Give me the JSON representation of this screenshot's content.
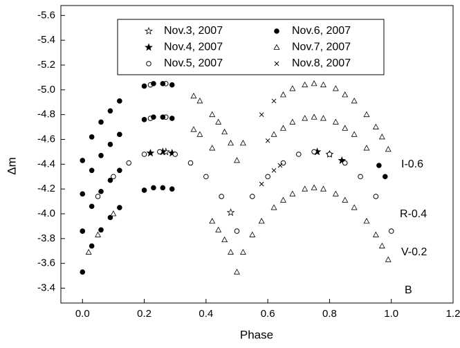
{
  "chart_data": {
    "type": "scatter",
    "xlabel": "Phase",
    "ylabel": "Δm",
    "xlim": [
      -0.07,
      1.2
    ],
    "ylim": [
      -5.68,
      -3.28
    ],
    "y_inverted": true,
    "xticks": [
      {
        "value": 0,
        "label": "0.0"
      },
      0.2,
      0.4,
      0.6,
      0.8,
      {
        "value": 1,
        "label": "1.0"
      },
      1.2
    ],
    "yticks": [
      -5.6,
      -5.4,
      -5.2,
      {
        "value": -5,
        "label": "-5.0"
      },
      -4.8,
      -4.6,
      -4.4,
      -4.2,
      {
        "value": -4,
        "label": "-4.0"
      },
      -3.8,
      -3.6,
      -3.4
    ],
    "legend": "top",
    "annotations": [
      "I-0.6",
      "R-0.4",
      "V-0.2",
      "B"
    ],
    "series": [
      {
        "name": "Nov.3, 2007",
        "marker": "star-open",
        "color": "#000000",
        "x": [
          0.27,
          0.48
        ],
        "y": [
          -4.5,
          -4.01
        ]
      },
      {
        "name": "Nov.4, 2007",
        "marker": "star",
        "color": "#000000",
        "x": [
          0.22,
          0.26,
          0.29,
          0.76,
          0.8,
          0.84
        ],
        "y": [
          -4.49,
          -4.5,
          -4.49,
          -4.5,
          -4.48,
          -4.43
        ]
      },
      {
        "name": "Nov.5, 2007",
        "marker": "circle-open",
        "color": "#000000",
        "x": [
          0.0,
          0.05,
          0.1,
          0.15,
          0.2,
          0.25,
          0.3,
          0.35,
          0.4,
          0.45,
          0.5,
          0.55,
          0.6,
          0.65,
          0.7,
          0.75,
          0.8,
          0.85,
          0.9,
          0.95,
          1.0,
          0.22,
          0.27,
          0.22,
          0.27
        ],
        "y": [
          -3.86,
          -4.14,
          -4.3,
          -4.41,
          -4.48,
          -4.5,
          -4.48,
          -4.41,
          -4.3,
          -4.14,
          -3.86,
          -4.14,
          -4.3,
          -4.41,
          -4.48,
          -4.5,
          -4.48,
          -4.41,
          -4.3,
          -4.14,
          -3.86,
          -4.77,
          -4.78,
          -5.04,
          -5.05
        ]
      },
      {
        "name": "Nov.6, 2007",
        "marker": "circle",
        "color": "#000000",
        "x": [
          0.0,
          0.03,
          0.06,
          0.09,
          0.12,
          0.2,
          0.23,
          0.26,
          0.29,
          0.0,
          0.03,
          0.06,
          0.09,
          0.12,
          0.0,
          0.03,
          0.06,
          0.09,
          0.12,
          0.2,
          0.23,
          0.26,
          0.29,
          0.96,
          0.98,
          0.0,
          0.03,
          0.06,
          0.09,
          0.12,
          0.2,
          0.23,
          0.26,
          0.29
        ],
        "y": [
          -3.53,
          -3.74,
          -3.87,
          -3.97,
          -4.05,
          -4.19,
          -4.21,
          -4.21,
          -4.2,
          -3.86,
          -4.06,
          -4.18,
          -4.27,
          -4.35,
          -4.16,
          -4.35,
          -4.47,
          -4.56,
          -4.64,
          -4.76,
          -4.78,
          -4.78,
          -4.77,
          -4.39,
          -4.3,
          -4.43,
          -4.62,
          -4.74,
          -4.83,
          -4.91,
          -5.03,
          -5.05,
          -5.05,
          -5.04
        ]
      },
      {
        "name": "Nov.7, 2007",
        "marker": "triangle-open",
        "color": "#000000",
        "x": [
          0.02,
          0.05,
          0.1,
          0.42,
          0.44,
          0.46,
          0.48,
          0.5,
          0.52,
          0.55,
          0.58,
          0.62,
          0.65,
          0.68,
          0.72,
          0.75,
          0.78,
          0.82,
          0.85,
          0.88,
          0.92,
          0.95,
          0.97,
          0.99,
          0.36,
          0.38,
          0.42,
          0.62,
          0.65,
          0.68,
          0.72,
          0.75,
          0.78,
          0.82,
          0.85,
          0.88,
          0.92,
          0.36,
          0.38,
          0.42,
          0.44,
          0.46,
          0.48,
          0.5,
          0.52,
          0.65,
          0.68,
          0.72,
          0.75,
          0.78,
          0.82,
          0.85,
          0.88,
          0.92,
          0.95,
          0.97,
          0.99
        ],
        "y": [
          -3.69,
          -3.83,
          -4.0,
          -3.94,
          -3.87,
          -3.79,
          -3.69,
          -3.53,
          -3.69,
          -3.83,
          -3.94,
          -4.05,
          -4.11,
          -4.16,
          -4.2,
          -4.21,
          -4.2,
          -4.16,
          -4.11,
          -4.05,
          -3.94,
          -3.83,
          -3.74,
          -3.63,
          -4.68,
          -4.64,
          -4.53,
          -4.64,
          -4.69,
          -4.74,
          -4.77,
          -4.78,
          -4.77,
          -4.74,
          -4.69,
          -4.64,
          -4.53,
          -4.95,
          -4.91,
          -4.8,
          -4.74,
          -4.66,
          -4.57,
          -4.43,
          -4.57,
          -4.96,
          -5.01,
          -5.04,
          -5.05,
          -5.04,
          -5.01,
          -4.96,
          -4.91,
          -4.8,
          -4.7,
          -4.62,
          -4.52
        ]
      },
      {
        "name": "Nov.8, 2007",
        "marker": "x",
        "color": "#000000",
        "x": [
          0.58,
          0.62,
          0.64,
          0.6,
          0.58,
          0.62
        ],
        "y": [
          -4.24,
          -4.35,
          -4.39,
          -4.59,
          -4.8,
          -4.91
        ]
      }
    ]
  }
}
